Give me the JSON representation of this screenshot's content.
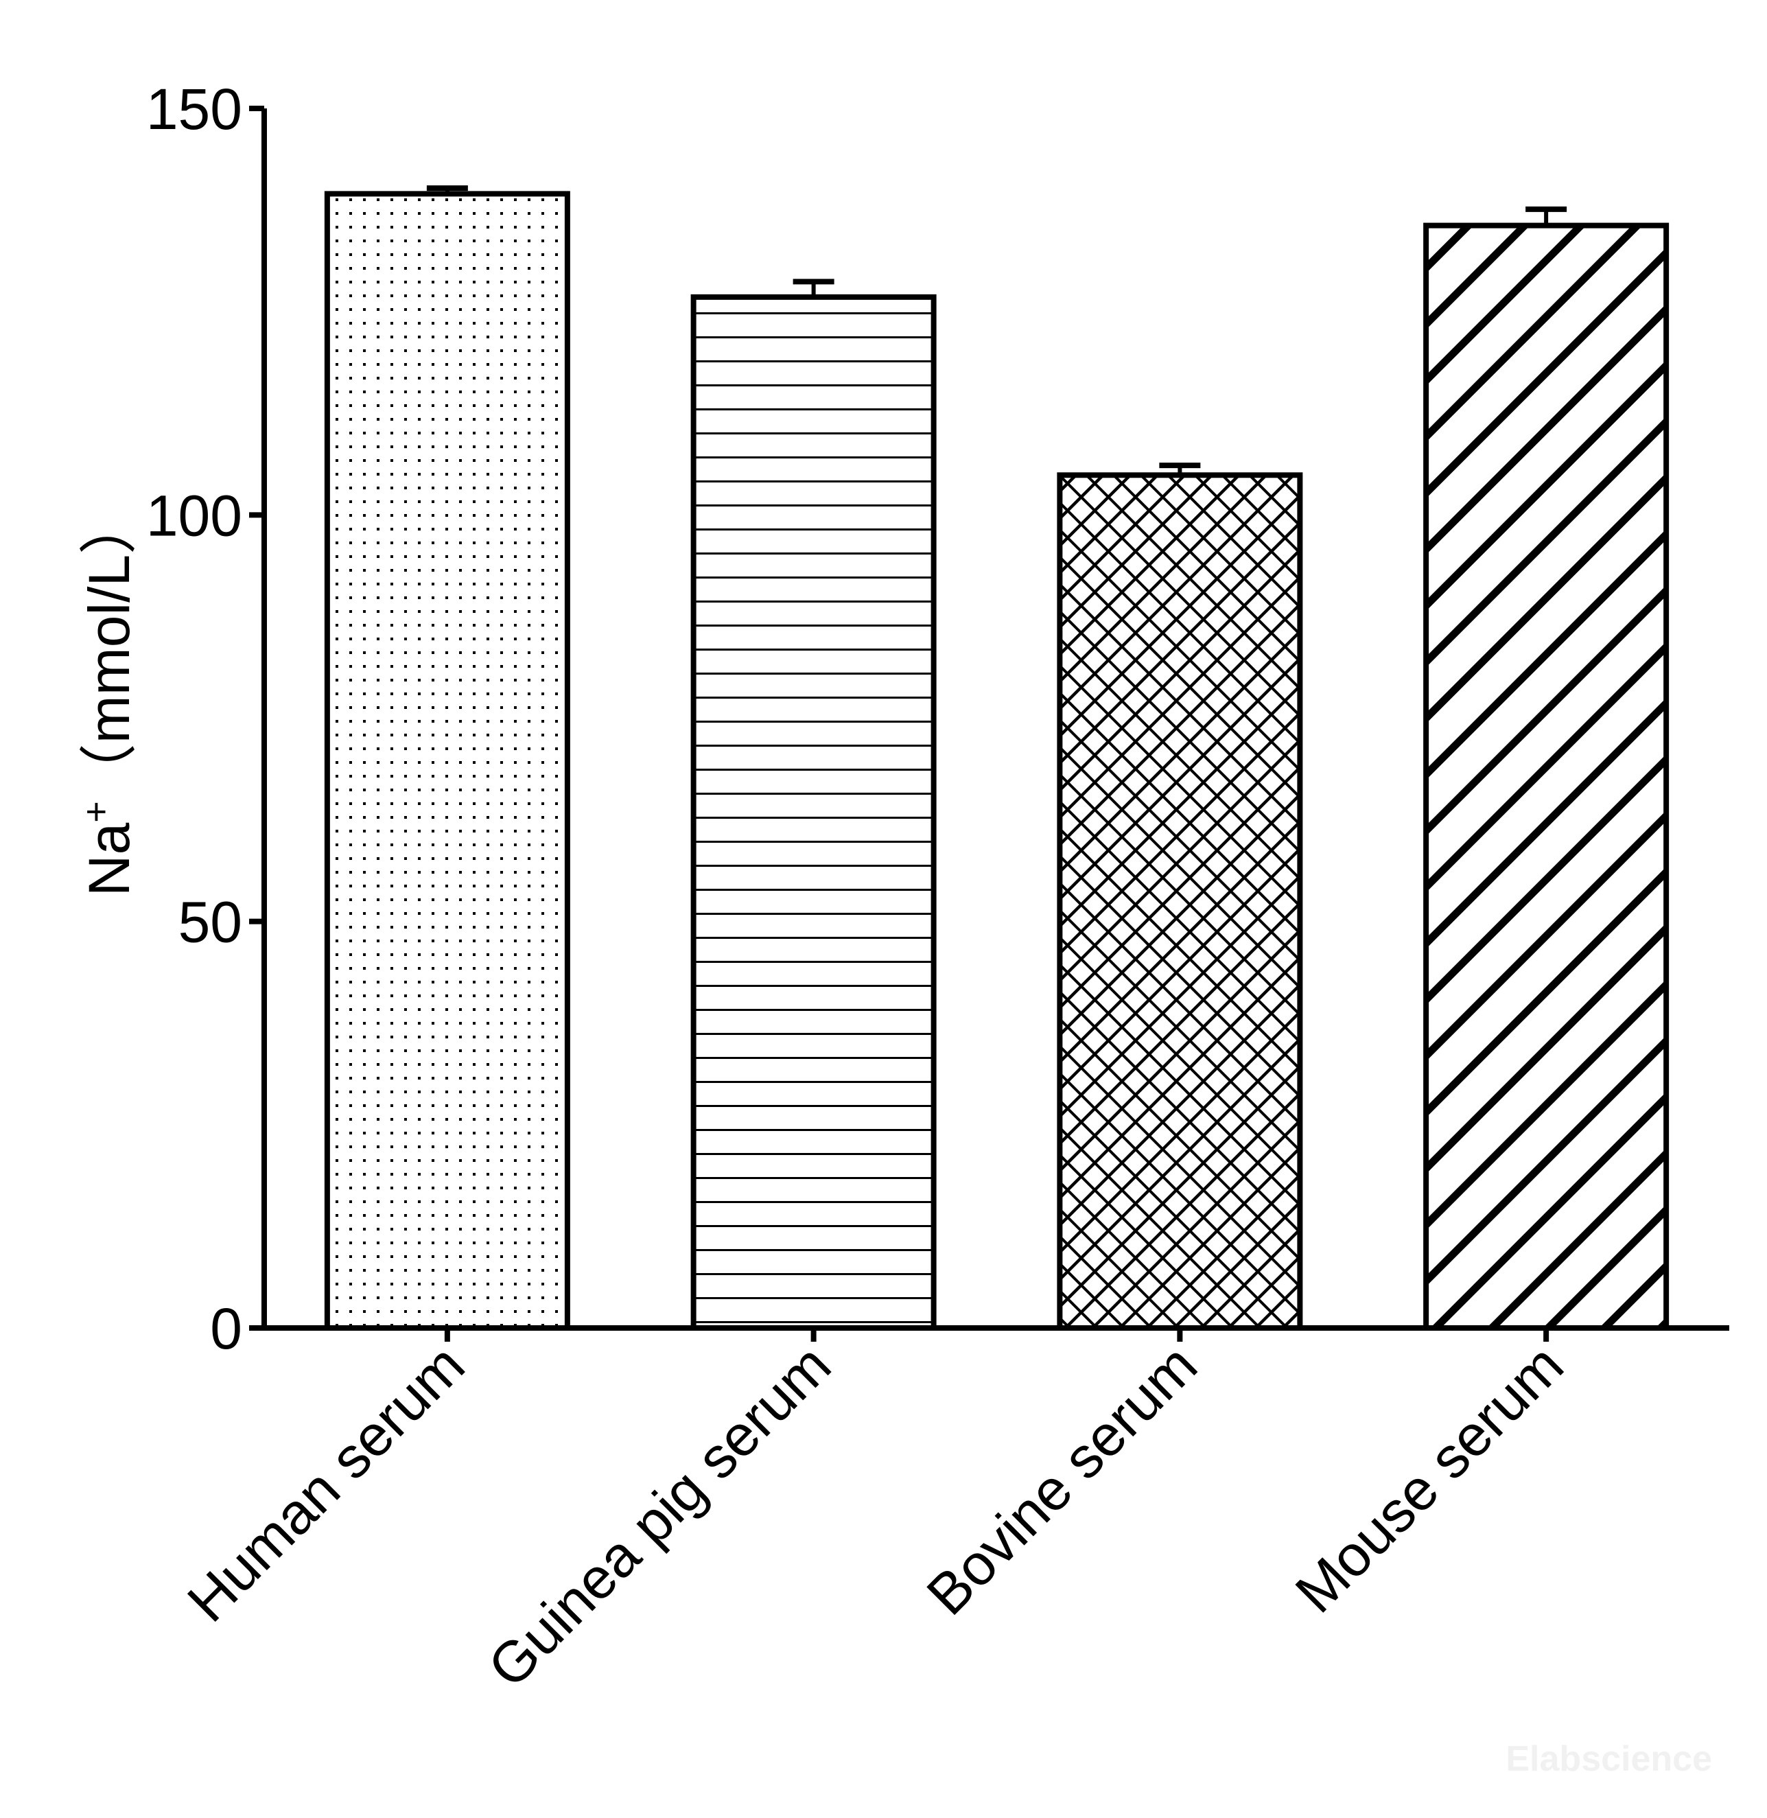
{
  "chart_data": {
    "type": "bar",
    "categories": [
      "Human serum",
      "Guinea pig serum",
      "Bovine serum",
      "Mouse serum"
    ],
    "values": [
      139.5,
      126.8,
      104.9,
      135.6
    ],
    "error": [
      0.7,
      1.9,
      1.2,
      2.0
    ],
    "patterns": [
      "dots",
      "horizontal-lines",
      "crosshatch",
      "diagonal-stripes"
    ],
    "ylabel": {
      "main": "Na",
      "sup": "+",
      "unit": "（mmol/L）"
    },
    "ylim": [
      0,
      150
    ],
    "yticks": [
      0,
      50,
      100,
      150
    ],
    "grid": false,
    "bar_color": "#ffffff",
    "stroke_color": "#000000"
  },
  "watermark": "Elabscience"
}
